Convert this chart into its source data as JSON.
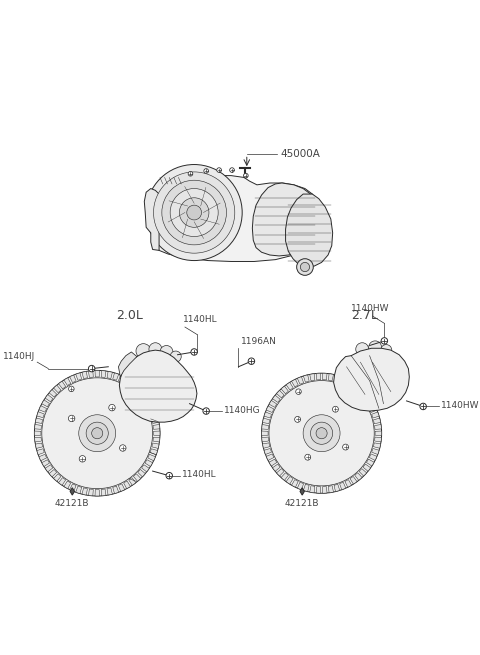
{
  "bg_color": "#ffffff",
  "line_color": "#2a2a2a",
  "label_color": "#444444",
  "figsize": [
    4.8,
    6.55
  ],
  "dpi": 100,
  "labels": {
    "main_part": "45000A",
    "left_label": "2.0L",
    "right_label": "2.7L",
    "l_1140HJ": "1140HJ",
    "l_1140HL_top": "1140HL",
    "l_1140HL_bot": "1140HL",
    "l_1140HG": "1140HG",
    "l_1196AN": "1196AN",
    "l_1140HW_top": "1140HW",
    "l_1140HW_bot": "1140HW",
    "l_42121B_left": "42121B",
    "l_42121B_right": "42121B"
  }
}
